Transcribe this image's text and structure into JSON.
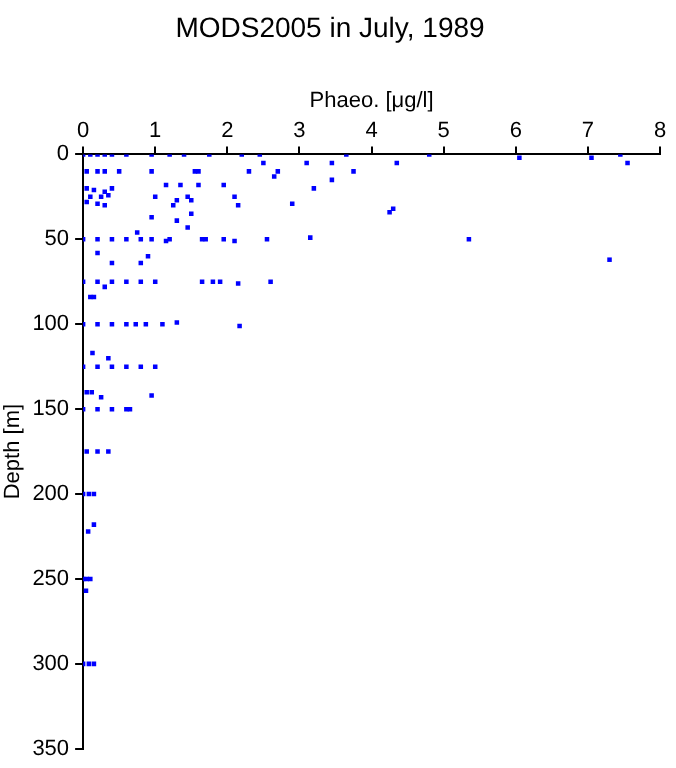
{
  "chart_data": {
    "type": "scatter",
    "title": "MODS2005 in July, 1989",
    "xlabel": "Phaeo. [μg/l]",
    "ylabel": "Depth [m]",
    "marker": "square",
    "series": [
      {
        "color": "#0000ff",
        "x": [
          0,
          0.1,
          0.2,
          0.3,
          0.4,
          0.6,
          0.95,
          1.2,
          1.4,
          1.75,
          2.2,
          2.45,
          3.65,
          4.8,
          7.45,
          6.05,
          7.05,
          2.5,
          3.1,
          3.45,
          4.35,
          7.55,
          0.05,
          0.2,
          0.3,
          0.5,
          0.95,
          1.55,
          1.6,
          2.3,
          2.7,
          3.75,
          2.65,
          3.45,
          1.15,
          1.35,
          1.6,
          1.95,
          3.2,
          0.05,
          0.15,
          0.3,
          0.4,
          0.1,
          0.25,
          0.35,
          0.05,
          0.2,
          0.3,
          1.0,
          1.45,
          1.3,
          2.1,
          2.9,
          2.15,
          1.25,
          1.5,
          4.3,
          4.25,
          0.95,
          1.5,
          1.3,
          1.45,
          0.75,
          0,
          0.2,
          0.4,
          0.6,
          0.8,
          0.95,
          1.15,
          1.2,
          1.65,
          1.7,
          1.95,
          2.1,
          2.55,
          3.15,
          5.35,
          0.2,
          0.9,
          7.3,
          0.4,
          0.8,
          0,
          0.2,
          0.4,
          0.6,
          0.8,
          1.0,
          1.65,
          1.8,
          1.9,
          2.15,
          2.6,
          0.3,
          0.1,
          0.15,
          0,
          0.2,
          0.4,
          0.6,
          0.73,
          0.87,
          1.1,
          1.3,
          2.17,
          0.13,
          0.35,
          0,
          0.2,
          0.4,
          0.6,
          0.8,
          1.0,
          0.05,
          0.12,
          0.25,
          0.95,
          0,
          0.2,
          0.4,
          0.6,
          0.65,
          0.05,
          0.2,
          0.35,
          0,
          0.08,
          0.15,
          0.15,
          0.07,
          0,
          0.05,
          0.1,
          0.04,
          0,
          0.08,
          0.15
        ],
        "values": [
          0,
          0,
          0,
          0,
          0,
          0,
          0,
          0,
          0,
          0,
          0,
          0,
          0,
          0,
          0,
          2,
          2,
          5,
          5,
          5,
          5,
          5,
          10,
          10,
          10,
          10,
          10,
          10,
          10,
          10,
          10,
          10,
          13,
          15,
          18,
          18,
          18,
          18,
          20,
          20,
          21,
          22,
          20,
          25,
          25,
          24,
          28,
          29,
          30,
          25,
          25,
          27,
          25,
          29,
          30,
          30,
          27,
          32,
          34,
          37,
          35,
          39,
          43,
          46,
          50,
          50,
          50,
          50,
          50,
          50,
          51,
          50,
          50,
          50,
          50,
          51,
          50,
          49,
          50,
          58,
          60,
          62,
          64,
          64,
          75,
          75,
          75,
          75,
          75,
          75,
          75,
          75,
          75,
          76,
          75,
          78,
          84,
          84,
          100,
          100,
          100,
          100,
          100,
          100,
          100,
          99,
          101,
          117,
          120,
          125,
          125,
          125,
          125,
          125,
          125,
          140,
          140,
          143,
          142,
          150,
          150,
          150,
          150,
          150,
          175,
          175,
          175,
          200,
          200,
          200,
          218,
          222,
          250,
          250,
          250,
          257,
          300,
          300,
          300
        ]
      }
    ],
    "xlim": [
      0,
      8
    ],
    "xticks": [
      0,
      1,
      2,
      3,
      4,
      5,
      6,
      7,
      8
    ],
    "ylim": [
      350,
      0
    ],
    "yticks": [
      0,
      50,
      100,
      150,
      200,
      250,
      300,
      350
    ]
  }
}
